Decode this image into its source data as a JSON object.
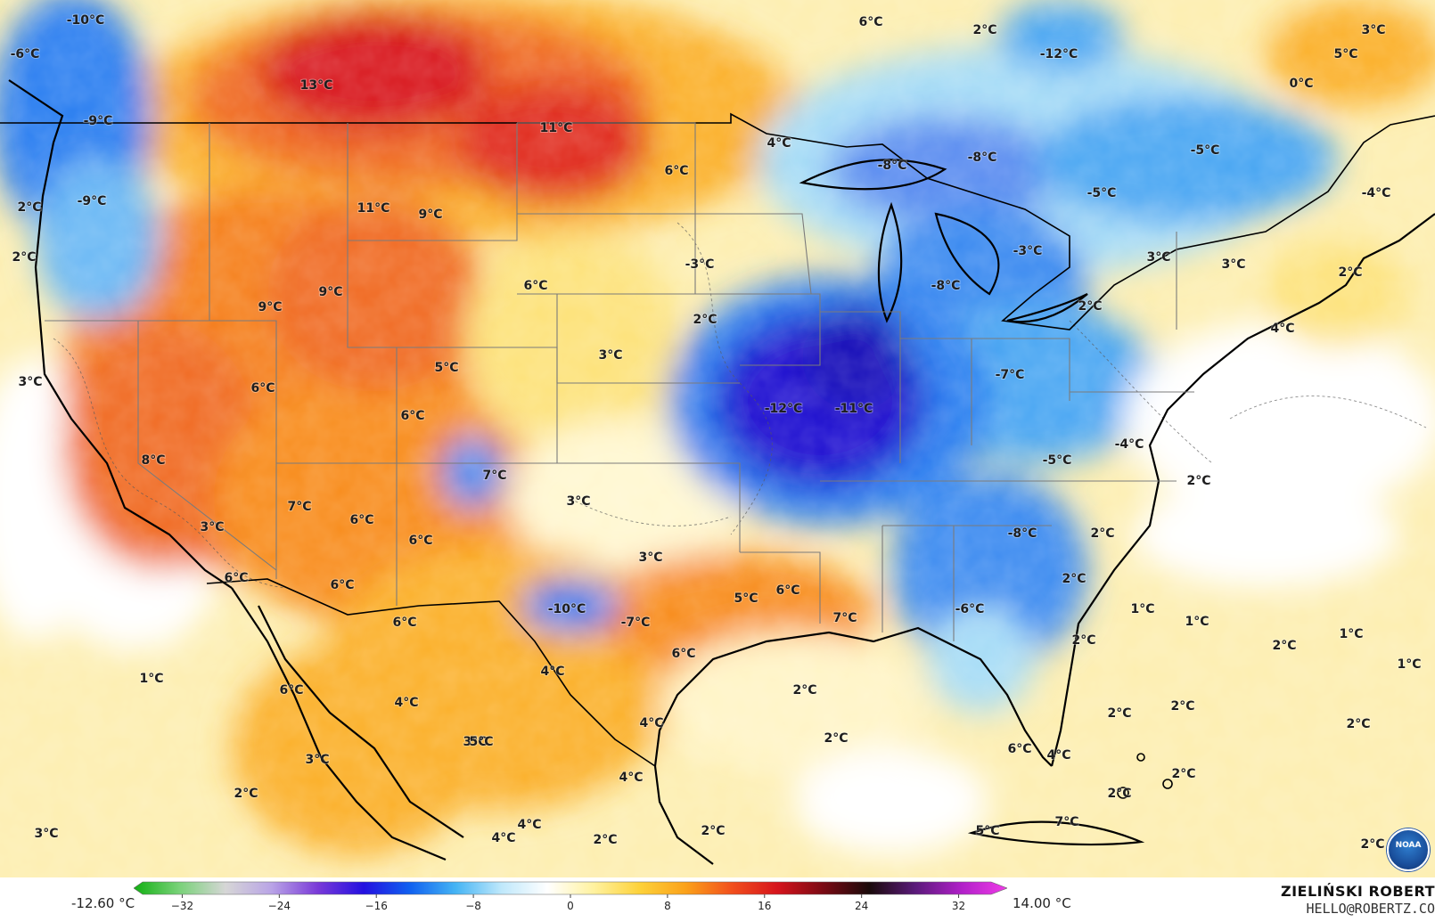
{
  "map": {
    "title": "",
    "accent_colors": {
      "ocean_warm": "#fdeeb0",
      "very_cold": "#1a10d0",
      "cold": "#2a7ef0",
      "cool": "#a6dcf6",
      "neutral": "#ffffff",
      "mild": "#fde27a",
      "warm": "#fbb02a",
      "hot": "#f06a20",
      "very_hot": "#d8141e"
    },
    "temperature_labels": [
      {
        "text": "-10°C"
      },
      {
        "text": "-6°C"
      },
      {
        "text": "13°C"
      },
      {
        "text": "-9°C"
      },
      {
        "text": "-9°C"
      },
      {
        "text": "2°C"
      },
      {
        "text": "2°C"
      },
      {
        "text": "11°C"
      },
      {
        "text": "11°C"
      },
      {
        "text": "9°C"
      },
      {
        "text": "9°C"
      },
      {
        "text": "9°C"
      },
      {
        "text": "6°C"
      },
      {
        "text": "6°C"
      },
      {
        "text": "4°C"
      },
      {
        "text": "6°C"
      },
      {
        "text": "2°C"
      },
      {
        "text": "-12°C"
      },
      {
        "text": "0°C"
      },
      {
        "text": "-8°C"
      },
      {
        "text": "-8°C"
      },
      {
        "text": "-5°C"
      },
      {
        "text": "-5°C"
      },
      {
        "text": "-4°C"
      },
      {
        "text": "5°C"
      },
      {
        "text": "3°C"
      },
      {
        "text": "-3°C"
      },
      {
        "text": "2°C"
      },
      {
        "text": "3°C"
      },
      {
        "text": "5°C"
      },
      {
        "text": "6°C"
      },
      {
        "text": "6°C"
      },
      {
        "text": "3°C"
      },
      {
        "text": "-8°C"
      },
      {
        "text": "-3°C"
      },
      {
        "text": "3°C"
      },
      {
        "text": "3°C"
      },
      {
        "text": "2°C"
      },
      {
        "text": "2°C"
      },
      {
        "text": "4°C"
      },
      {
        "text": "-7°C"
      },
      {
        "text": "-12°C"
      },
      {
        "text": "-11°C"
      },
      {
        "text": "8°C"
      },
      {
        "text": "7°C"
      },
      {
        "text": "3°C"
      },
      {
        "text": "7°C"
      },
      {
        "text": "6°C"
      },
      {
        "text": "6°C"
      },
      {
        "text": "3°C"
      },
      {
        "text": "-4°C"
      },
      {
        "text": "-5°C"
      },
      {
        "text": "2°C"
      },
      {
        "text": "6°C"
      },
      {
        "text": "6°C"
      },
      {
        "text": "3°C"
      },
      {
        "text": "-8°C"
      },
      {
        "text": "2°C"
      },
      {
        "text": "2°C"
      },
      {
        "text": "6°C"
      },
      {
        "text": "5°C"
      },
      {
        "text": "6°C"
      },
      {
        "text": "-10°C"
      },
      {
        "text": "-7°C"
      },
      {
        "text": "7°C"
      },
      {
        "text": "-6°C"
      },
      {
        "text": "6°C"
      },
      {
        "text": "1°C"
      },
      {
        "text": "1°C"
      },
      {
        "text": "1°C"
      },
      {
        "text": "2°C"
      },
      {
        "text": "2°C"
      },
      {
        "text": "1°C"
      },
      {
        "text": "1°C"
      },
      {
        "text": "4°C"
      },
      {
        "text": "6°C"
      },
      {
        "text": "4°C"
      },
      {
        "text": "2°C"
      },
      {
        "text": "2°C"
      },
      {
        "text": "2°C"
      },
      {
        "text": "2°C"
      },
      {
        "text": "4°C"
      },
      {
        "text": "3°C"
      },
      {
        "text": "5°C"
      },
      {
        "text": "4°C"
      },
      {
        "text": "2°C"
      },
      {
        "text": "2°C"
      },
      {
        "text": "4°C"
      },
      {
        "text": "2°C"
      },
      {
        "text": "3°C"
      },
      {
        "text": "2°C"
      },
      {
        "text": "2°C"
      },
      {
        "text": "4°C"
      },
      {
        "text": "5°C"
      },
      {
        "text": "7°C"
      },
      {
        "text": "6°C"
      },
      {
        "text": "4°C"
      },
      {
        "text": "2°C"
      },
      {
        "text": "2°C"
      },
      {
        "text": "3°C"
      }
    ]
  },
  "legend": {
    "min_label": "-12.60 °C",
    "max_label": "14.00 °C",
    "ticks": [
      "−32",
      "−24",
      "−16",
      "−8",
      "0",
      "8",
      "16",
      "24",
      "32"
    ],
    "tick_values": [
      -32,
      -24,
      -16,
      -8,
      0,
      8,
      16,
      24,
      32
    ],
    "range": [
      -36,
      36
    ],
    "gradient_colors": [
      "#12b012",
      "#7ad27a",
      "#d6d6d6",
      "#b9a4e6",
      "#7a3ad8",
      "#2410e0",
      "#1060f0",
      "#45b4f4",
      "#bfe8fb",
      "#ffffff",
      "#fff2a0",
      "#fdd23a",
      "#fba21a",
      "#f2501c",
      "#d6141c",
      "#7a0a14",
      "#1a0a0a",
      "#5a1a7a",
      "#b020c8",
      "#f03ce8"
    ]
  },
  "credit": {
    "name": "ZIELIŃSKI ROBERT",
    "email": "HELLO@ROBERTZ.CO"
  },
  "logo": {
    "icon": "noaa-logo-icon",
    "text": "NOAA"
  }
}
